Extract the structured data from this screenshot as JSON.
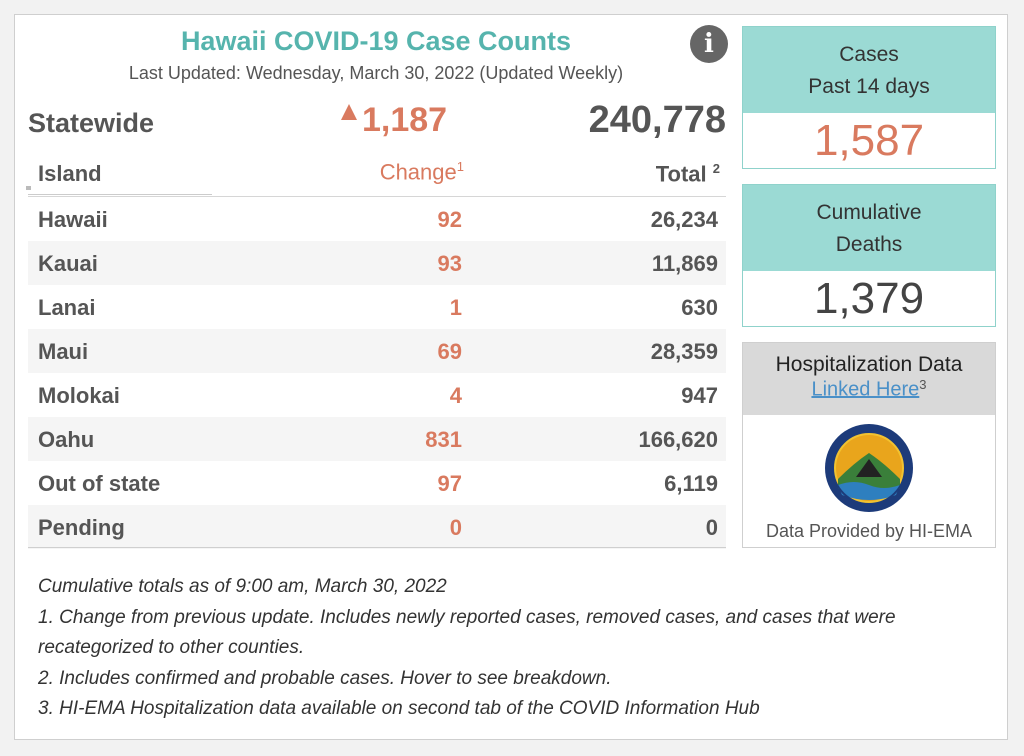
{
  "header": {
    "title": "Hawaii COVID-19 Case Counts",
    "last_updated": "Last Updated: Wednesday, March 30, 2022 (Updated Weekly)",
    "info_icon": "info-icon"
  },
  "statewide": {
    "label": "Statewide",
    "change": "1,187",
    "total": "240,778"
  },
  "table": {
    "columns": {
      "island": "Island",
      "change": "Change",
      "change_sup": "1",
      "total": "Total",
      "total_sup": "2"
    },
    "rows": [
      {
        "name": "Hawaii",
        "change": "92",
        "total": "26,234"
      },
      {
        "name": "Kauai",
        "change": "93",
        "total": "11,869"
      },
      {
        "name": "Lanai",
        "change": "1",
        "total": "630"
      },
      {
        "name": "Maui",
        "change": "69",
        "total": "28,359"
      },
      {
        "name": "Molokai",
        "change": "4",
        "total": "947"
      },
      {
        "name": "Oahu",
        "change": "831",
        "total": "166,620"
      },
      {
        "name": "Out of state",
        "change": "97",
        "total": "6,119"
      },
      {
        "name": "Pending",
        "change": "0",
        "total": "0"
      }
    ]
  },
  "cases_card": {
    "line1": "Cases",
    "line2": "Past 14 days",
    "value": "1,587"
  },
  "deaths_card": {
    "line1": "Cumulative",
    "line2": "Deaths",
    "value": "1,379"
  },
  "hospitalization": {
    "title": "Hospitalization Data",
    "link_label": "Linked Here",
    "link_sup": "3",
    "provided_by": "Data Provided by HI-EMA"
  },
  "notes": [
    "Cumulative totals as of 9:00 am, March 30, 2022",
    "1. Change from previous update. Includes newly reported cases, removed cases, and cases that were recategorized to other counties.",
    "2. Includes confirmed and probable cases. Hover to see breakdown.",
    "3. HI-EMA Hospitalization data available on second tab of the COVID Information Hub"
  ],
  "colors": {
    "title": "#56b4ad",
    "change": "#d97a5f",
    "card_head": "#9bdad4",
    "text": "#555555"
  }
}
